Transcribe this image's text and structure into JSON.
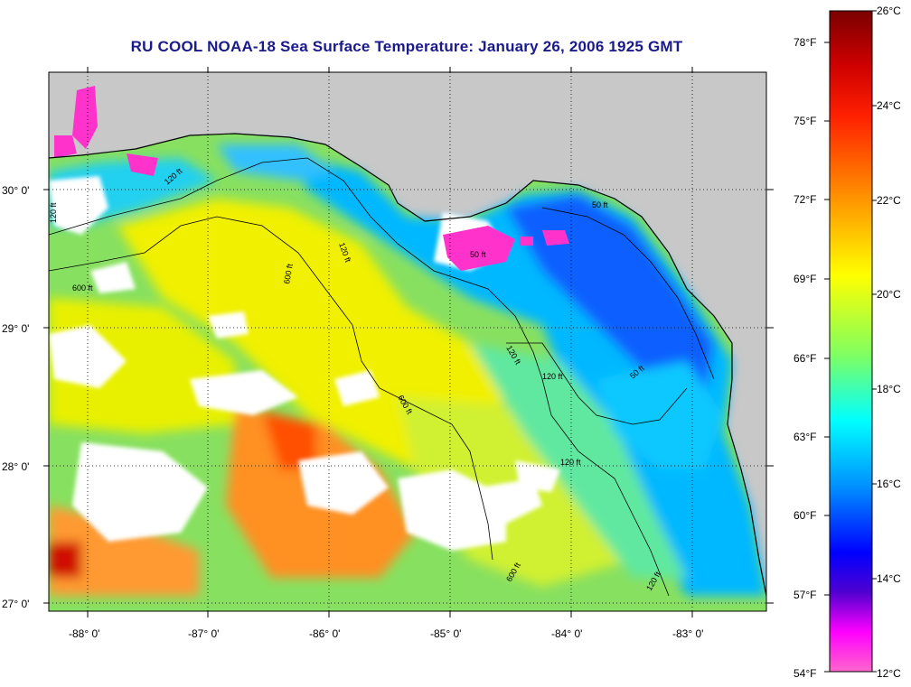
{
  "title": "RU COOL  NOAA-18  Sea Surface Temperature:  January 26, 2006 1925 GMT",
  "map": {
    "lat_labels": [
      "30° 0'",
      "29° 0'",
      "28° 0'",
      "27° 0'"
    ],
    "lon_labels": [
      "-88° 0'",
      "-87° 0'",
      "-86° 0'",
      "-85° 0'",
      "-84° 0'",
      "-83° 0'"
    ],
    "contour_labels": [
      "120 ft",
      "120 ft",
      "600 ft",
      "600 ft",
      "120 ft",
      "120 ft",
      "50 ft",
      "50 ft",
      "600 ft",
      "120 ft",
      "120 ft",
      "50 ft",
      "120 ft",
      "600 ft"
    ],
    "colors": {
      "land": "#c8c8c8",
      "cloud": "#ffffff",
      "contour": "#000000"
    }
  },
  "colorbar": {
    "celsius_labels": [
      "26°C",
      "24°C",
      "22°C",
      "20°C",
      "18°C",
      "16°C",
      "14°C",
      "12°C"
    ],
    "fahrenheit_labels": [
      "78°F",
      "75°F",
      "72°F",
      "69°F",
      "66°F",
      "63°F",
      "60°F",
      "57°F",
      "54°F"
    ],
    "colors": [
      "#800000",
      "#ff0000",
      "#ff8c00",
      "#ffff00",
      "#80ff40",
      "#00ffff",
      "#0080ff",
      "#0000ff",
      "#8000c0",
      "#ff00ff",
      "#ff66cc"
    ]
  }
}
